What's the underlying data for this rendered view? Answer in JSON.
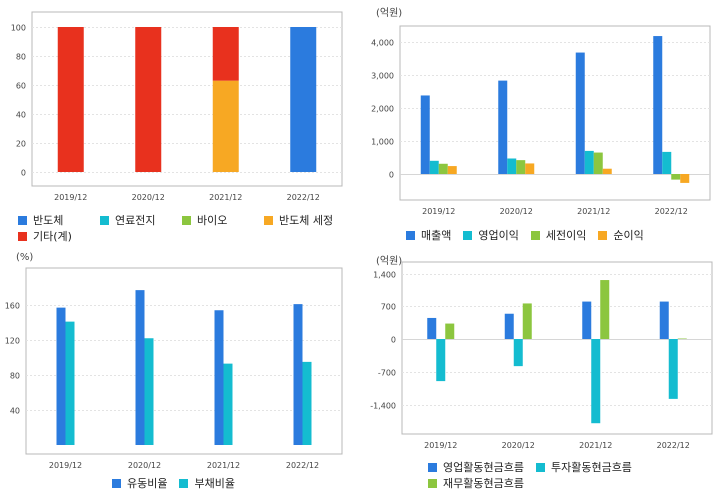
{
  "chart_data": [
    {
      "id": "segment-share",
      "type": "bar",
      "stacked": true,
      "title": "",
      "unit": "",
      "categories": [
        "2019/12",
        "2020/12",
        "2021/12",
        "2022/12"
      ],
      "ylim": [
        0,
        100
      ],
      "yticks": [
        "0",
        "20",
        "40",
        "60",
        "80",
        "100"
      ],
      "legend_position": "bottom",
      "series": [
        {
          "name": "반도체",
          "color": "#2b7bde",
          "values": [
            0,
            0,
            0,
            100
          ]
        },
        {
          "name": "연료전지",
          "color": "#14bcd0",
          "values": [
            0,
            0,
            0,
            0
          ]
        },
        {
          "name": "바이오",
          "color": "#8cc63f",
          "values": [
            0,
            0,
            0,
            0
          ]
        },
        {
          "name": "반도체 세정",
          "color": "#f7a823",
          "values": [
            0,
            0,
            63,
            0
          ]
        },
        {
          "name": "기타(계)",
          "color": "#e8311e",
          "values": [
            100,
            100,
            37,
            0
          ]
        }
      ]
    },
    {
      "id": "income",
      "type": "bar",
      "title": "",
      "unit": "(억원)",
      "categories": [
        "2019/12",
        "2020/12",
        "2021/12",
        "2022/12"
      ],
      "ylim": [
        -350,
        4400
      ],
      "yticks": [
        "0",
        "1,000",
        "2,000",
        "3,000",
        "4,000"
      ],
      "legend_position": "bottom",
      "series": [
        {
          "name": "매출액",
          "color": "#2b7bde",
          "values": [
            2380,
            2830,
            3680,
            4180
          ]
        },
        {
          "name": "영업이익",
          "color": "#14bcd0",
          "values": [
            400,
            470,
            700,
            670
          ]
        },
        {
          "name": "세전이익",
          "color": "#8cc63f",
          "values": [
            310,
            420,
            650,
            -170
          ]
        },
        {
          "name": "순이익",
          "color": "#f7a823",
          "values": [
            240,
            320,
            160,
            -270
          ]
        }
      ]
    },
    {
      "id": "ratios",
      "type": "bar",
      "title": "",
      "unit": "(%)",
      "categories": [
        "2019/12",
        "2020/12",
        "2021/12",
        "2022/12"
      ],
      "ylim": [
        0,
        185
      ],
      "yticks": [
        "40",
        "80",
        "120",
        "160"
      ],
      "legend_position": "bottom",
      "series": [
        {
          "name": "유동비율",
          "color": "#2b7bde",
          "values": [
            157,
            177,
            154,
            161
          ]
        },
        {
          "name": "부채비율",
          "color": "#14bcd0",
          "values": [
            141,
            122,
            93,
            95
          ]
        }
      ]
    },
    {
      "id": "cashflow",
      "type": "bar",
      "title": "",
      "unit": "(억원)",
      "categories": [
        "2019/12",
        "2020/12",
        "2021/12",
        "2022/12"
      ],
      "ylim": [
        -2040,
        1520
      ],
      "yticks": [
        "-1,400",
        "-700",
        "0",
        "700",
        "1,400"
      ],
      "legend_position": "bottom",
      "series": [
        {
          "name": "영업활동현금흐름",
          "color": "#2b7bde",
          "values": [
            450,
            540,
            800,
            800
          ]
        },
        {
          "name": "투자활동현금흐름",
          "color": "#14bcd0",
          "values": [
            -900,
            -580,
            -1800,
            -1280
          ]
        },
        {
          "name": "재무활동현금흐름",
          "color": "#8cc63f",
          "values": [
            330,
            760,
            1260,
            10
          ]
        }
      ]
    }
  ]
}
